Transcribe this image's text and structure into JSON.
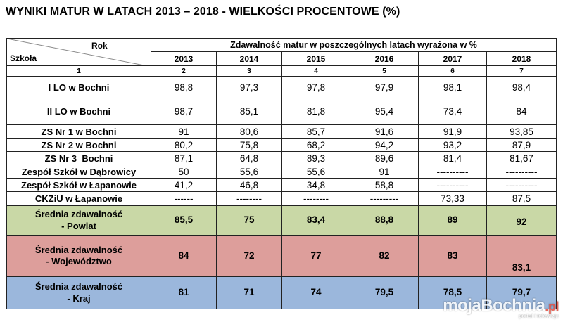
{
  "title": "WYNIKI MATUR W LATACH 2013 – 2018 - WIELKOŚCI PROCENTOWE (%)",
  "header": {
    "rok": "Rok",
    "szkola": "Szkoła",
    "group": "Zdawalność matur w poszczególnych latach wyrażona w %",
    "years": [
      "2013",
      "2014",
      "2015",
      "2016",
      "2017",
      "2018"
    ],
    "indices": [
      "1",
      "2",
      "3",
      "4",
      "5",
      "6",
      "7"
    ]
  },
  "rows": [
    {
      "school": "I LO w Bochni",
      "values": [
        "98,8",
        "97,3",
        "97,8",
        "97,9",
        "98,1",
        "98,4"
      ]
    },
    {
      "school": "II LO w Bochni",
      "values": [
        "98,7",
        "85,1",
        "81,8",
        "95,4",
        "73,4",
        "84"
      ]
    },
    {
      "school": "ZS Nr 1 w Bochni",
      "values": [
        "91",
        "80,6",
        "85,7",
        "91,6",
        "91,9",
        "93,85"
      ]
    },
    {
      "school": "ZS Nr 2 w Bochni",
      "values": [
        "80,2",
        "75,8",
        "68,2",
        "94,2",
        "93,2",
        "87,9"
      ]
    },
    {
      "school": "ZS Nr 3  Bochni",
      "values": [
        "87,1",
        "64,8",
        "89,3",
        "89,6",
        "81,4",
        "81,67"
      ]
    },
    {
      "school": "Zespół Szkół w Dąbrowicy",
      "values": [
        "50",
        "55,6",
        "55,6",
        "91",
        "----------",
        "----------"
      ]
    },
    {
      "school": "Zespół Szkół w Łapanowie",
      "values": [
        "41,2",
        "46,8",
        "34,8",
        "58,8",
        "----------",
        "----------"
      ]
    },
    {
      "school": "CKZiU w Łapanowie",
      "values": [
        "------",
        "--------",
        "--------",
        "---------",
        "73,33",
        "87,5"
      ]
    }
  ],
  "averages": {
    "powiat": {
      "line1": "Średnia zdawalność",
      "line2": "- Powiat",
      "values": [
        "85,5",
        "75",
        "83,4",
        "88,8",
        "89",
        "92"
      ],
      "color": "#c9d8a6"
    },
    "wojewodztwo": {
      "line1": "Średnia zdawalność",
      "line2": "- Województwo",
      "values": [
        "84",
        "72",
        "77",
        "82",
        "83",
        "83,1"
      ],
      "color": "#dd9e9b"
    },
    "kraj": {
      "line1": "Średnia zdawalność",
      "line2": "- Kraj",
      "values": [
        "81",
        "71",
        "74",
        "79,5",
        "78,5",
        "79,7"
      ],
      "color": "#9bb7dc"
    }
  },
  "watermark": {
    "brand": "mojaBochnia",
    "tld": ".pl",
    "sub": "portal i telewizja"
  }
}
